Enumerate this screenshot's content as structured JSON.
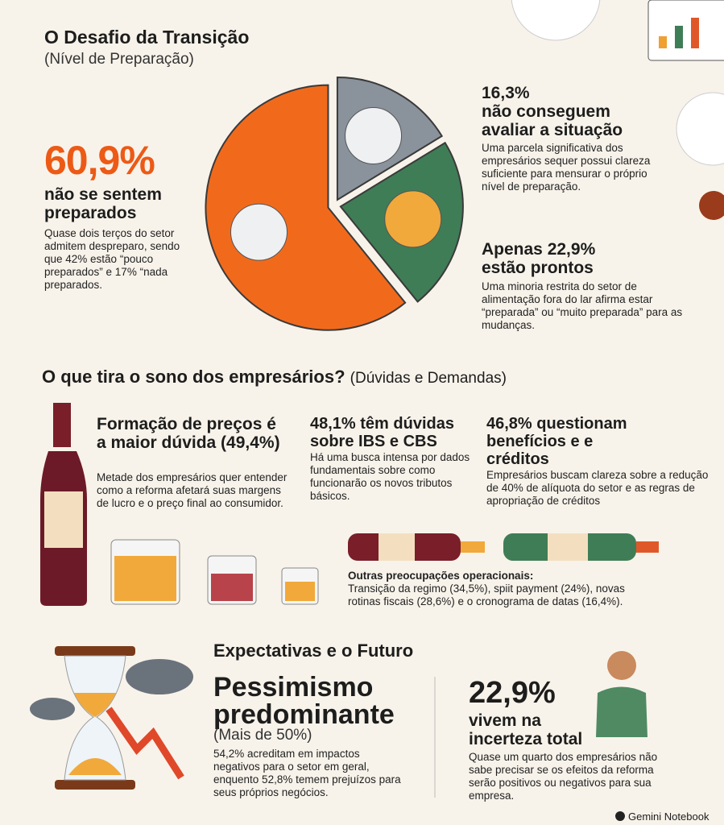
{
  "header": {
    "title": "O Desafio da Transição",
    "subtitle": "(Nível de Preparação)"
  },
  "pie": {
    "values": [
      16.3,
      22.9,
      60.9
    ],
    "colors": [
      "#8a929c",
      "#3f7d56",
      "#f16a1c"
    ]
  },
  "left": {
    "figure": "60,9%",
    "heading": "não se sentem preparados",
    "body": "Quase dois terços do setor admitem despreparo, sendo que 42% estão “pouco preparados” e 17% “nada preparados."
  },
  "right_top": {
    "figure": "16,3%",
    "heading": "não conseguem avaliar a situação",
    "body": "Uma parcela significativa dos empresários sequer possui clareza suficiente para mensurar o próprio nível de preparação."
  },
  "right_bottom": {
    "heading": "Apenas 22,9% estão prontos",
    "body": "Uma minoria restrita do setor de alimentação fora do lar afirma estar “preparada” ou “muito preparada” para as mudanças."
  },
  "section2": {
    "title": "O que tira o sono dos empresários?",
    "subtitle": "(Dúvidas e Demandas)",
    "items": [
      {
        "heading": "Formação de preços é a maior dúvida (49,4%)",
        "body": "Metade dos empresários quer entender como a reforma afetará suas margens de lucro e o preço final ao consumidor."
      },
      {
        "heading": "48,1% têm dúvidas sobre IBS e CBS",
        "body": "Há uma busca intensa por dados fundamentais sobre como funcionarão os novos tributos básicos."
      },
      {
        "heading": "46,8% questionam benefícios e e créditos",
        "body": "Empresários buscam clareza sobre a redução de 40% de alíquota do setor e as regras de apropriação de créditos"
      }
    ],
    "other_title": "Outras preocupações operacionais:",
    "other_body": "Transição da regimo (34,5%), spiit payment (24%), novas rotinas fiscais (28,6%) e o cronograma de datas (16,4%)."
  },
  "section3": {
    "title": "Expectativas e o Futuro",
    "heading": "Pessimismo predominante",
    "subheading": "(Mais de 50%)",
    "body": "54,2% acreditam em impactos negativos para o setor em geral, enquento 52,8% temem prejuízos para seus próprios negócios.",
    "figure": "22,9%",
    "figure_heading": "vivem na incerteza total",
    "figure_body": "Quase um quarto dos empresários não sabe precisar se os efeitos da reforma serão positivos ou negativos para sua empresa."
  },
  "footer": "Gemini Notebook"
}
